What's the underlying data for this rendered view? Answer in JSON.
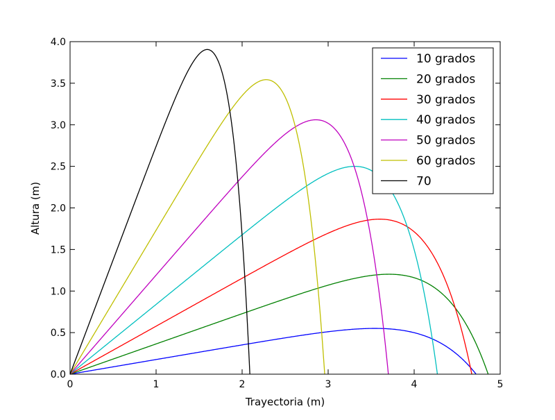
{
  "chart_data": {
    "type": "line",
    "xlabel": "Trayectoria (m)",
    "ylabel": "Altura (m)",
    "xlim": [
      0,
      5
    ],
    "ylim": [
      0,
      4.0
    ],
    "x_ticks": [
      "0",
      "1",
      "2",
      "3",
      "4",
      "5"
    ],
    "y_ticks": [
      "0.0",
      "0.5",
      "1.0",
      "1.5",
      "2.0",
      "2.5",
      "3.0",
      "3.5",
      "4.0"
    ],
    "grid": false,
    "legend_position": "top-right",
    "series": [
      {
        "name": "10 grados",
        "color": "#0000ff",
        "angle_deg": 10,
        "peak": [
          3.6,
          0.55
        ],
        "range": 4.72
      },
      {
        "name": "20 grados",
        "color": "#008000",
        "angle_deg": 20,
        "peak": [
          3.78,
          1.2
        ],
        "range": 4.86
      },
      {
        "name": "30 grados",
        "color": "#ff0000",
        "angle_deg": 30,
        "peak": [
          3.68,
          1.86
        ],
        "range": 4.67
      },
      {
        "name": "40 grados",
        "color": "#00bfbf",
        "angle_deg": 40,
        "peak": [
          3.4,
          2.49
        ],
        "range": 4.27
      },
      {
        "name": "50 grados",
        "color": "#bf00bf",
        "angle_deg": 50,
        "peak": [
          2.93,
          3.05
        ],
        "range": 3.7
      },
      {
        "name": "60 grados",
        "color": "#bfbf00",
        "angle_deg": 60,
        "peak": [
          2.34,
          3.53
        ],
        "range": 2.96
      },
      {
        "name": "70",
        "color": "#000000",
        "angle_deg": 70,
        "peak": [
          1.64,
          3.89
        ],
        "range": 2.09
      }
    ]
  }
}
